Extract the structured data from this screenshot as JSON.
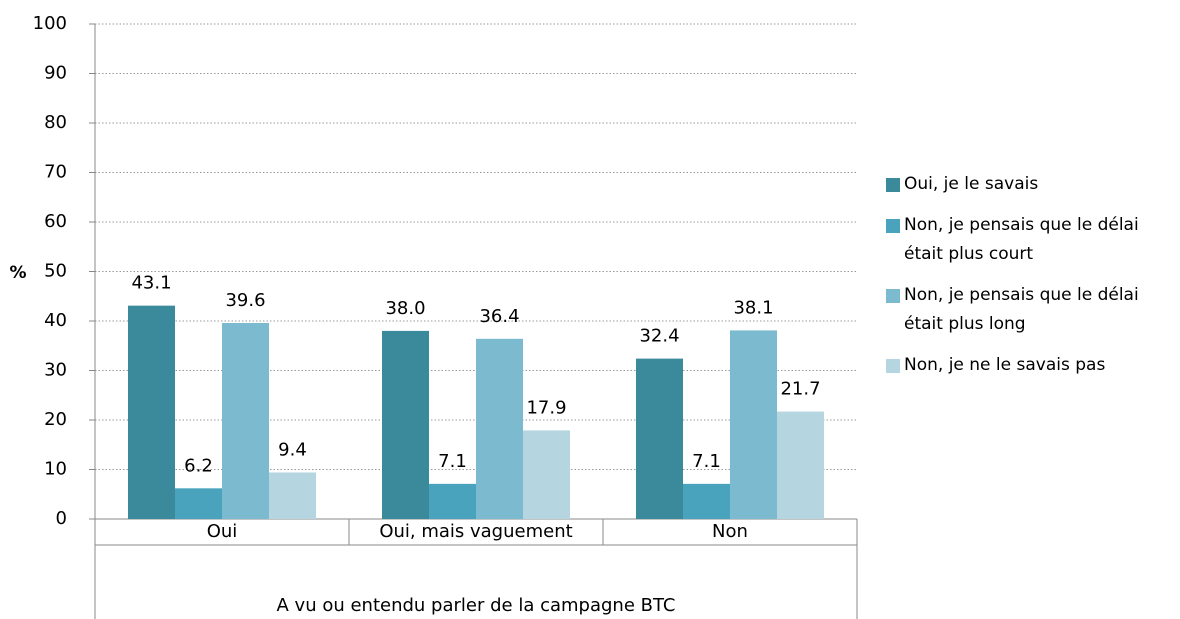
{
  "chart_data": {
    "type": "bar",
    "y_label": "%",
    "x_group_label": "A vu ou entendu parler de la campagne BTC",
    "categories": [
      "Oui",
      "Oui, mais vaguement",
      "Non"
    ],
    "series": [
      {
        "name": "Oui, je le savais",
        "color": "#3a8a9b",
        "values": [
          43.1,
          38.0,
          32.4
        ],
        "value_labels": [
          "43.1",
          "38.0",
          "32.4"
        ]
      },
      {
        "name": "Non, je pensais que le délai était plus court",
        "color": "#4aa3bd",
        "values": [
          6.2,
          7.1,
          7.1
        ],
        "value_labels": [
          "6.2",
          "7.1",
          "7.1"
        ]
      },
      {
        "name": "Non, je pensais que le délai était plus long",
        "color": "#7bbacf",
        "values": [
          39.6,
          36.4,
          38.1
        ],
        "value_labels": [
          "39.6",
          "36.4",
          "38.1"
        ]
      },
      {
        "name": "Non, je ne le savais pas",
        "color": "#b5d6e0",
        "values": [
          9.4,
          17.9,
          21.7
        ],
        "value_labels": [
          "9.4",
          "17.9",
          "21.7"
        ]
      }
    ],
    "ylim": [
      0,
      100
    ],
    "yticks": [
      0,
      10,
      20,
      30,
      40,
      50,
      60,
      70,
      80,
      90,
      100
    ],
    "grid": true
  }
}
